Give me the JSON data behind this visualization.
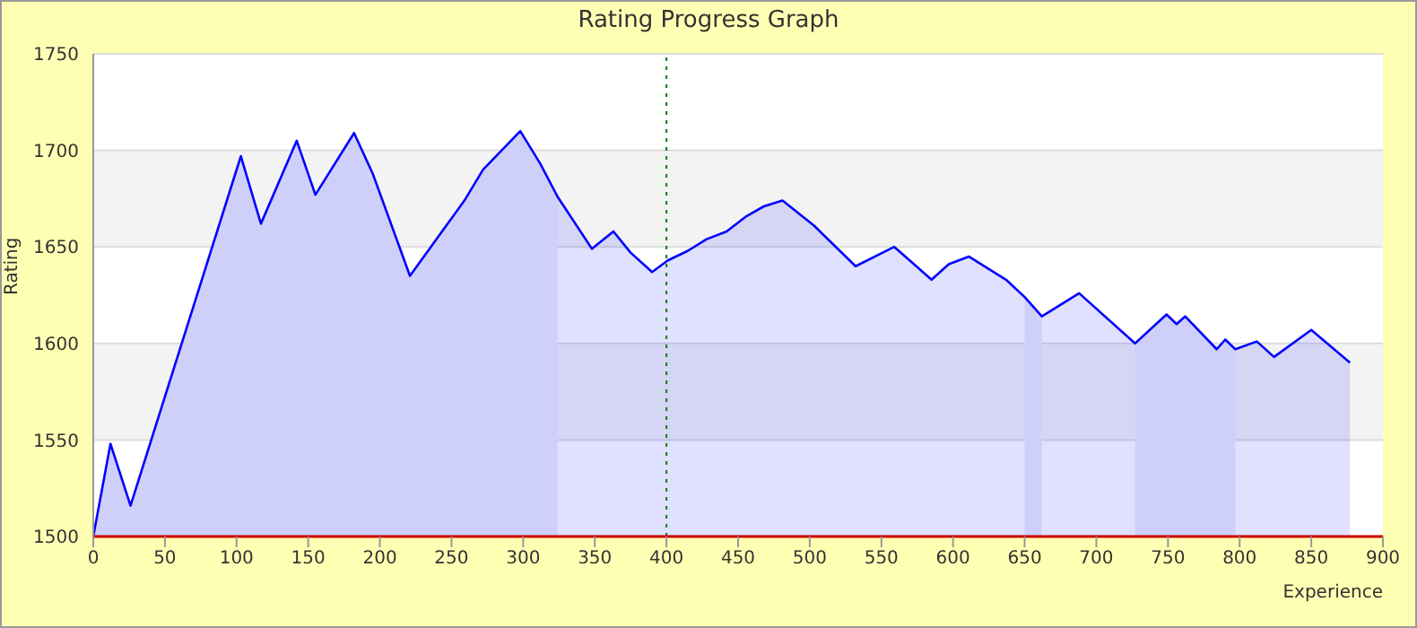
{
  "chart_data": {
    "type": "area",
    "title": "Rating Progress Graph",
    "xlabel": "Experience",
    "ylabel": "Rating",
    "xlim": [
      0,
      900
    ],
    "xticks": [
      0,
      50,
      100,
      150,
      200,
      250,
      300,
      350,
      400,
      450,
      500,
      550,
      600,
      650,
      700,
      750,
      800,
      850,
      900
    ],
    "ylim": [
      1500,
      1750
    ],
    "yticks": [
      1500,
      1550,
      1600,
      1650,
      1700,
      1750
    ],
    "grid": "y",
    "legend": false,
    "line_style": "solid",
    "ref_lines": [
      {
        "axis": "x",
        "value": 400,
        "color": "#008000",
        "line_style": "dotted"
      }
    ],
    "series": [
      {
        "color": "#0000ff",
        "x": [
          0,
          12,
          26,
          103,
          117,
          142,
          155,
          182,
          195,
          221,
          259,
          272,
          298,
          312,
          324,
          348,
          363,
          375,
          390,
          401,
          415,
          428,
          442,
          456,
          468,
          481,
          503,
          532,
          559,
          585,
          597,
          611,
          637,
          650,
          662,
          688,
          727,
          749,
          756,
          762,
          784,
          790,
          797,
          812,
          824,
          850,
          877
        ],
        "values": [
          1500,
          1548,
          1516,
          1697,
          1662,
          1705,
          1677,
          1709,
          1688,
          1635,
          1674,
          1690,
          1710,
          1693,
          1676,
          1649,
          1658,
          1647,
          1637,
          1643,
          1648,
          1654,
          1658,
          1666,
          1671,
          1674,
          1661,
          1640,
          1650,
          1633,
          1641,
          1645,
          1633,
          1624,
          1614,
          1626,
          1600,
          1615,
          1610,
          1614,
          1597,
          1602,
          1597,
          1601,
          1593,
          1607,
          1590
        ]
      },
      {
        "type": "area",
        "color": "#cfd0fa",
        "x": [
          0,
          12,
          26,
          103,
          117,
          142,
          155,
          182,
          195,
          221,
          259,
          272,
          298,
          312,
          324
        ],
        "values": [
          1500,
          1548,
          1516,
          1697,
          1662,
          1705,
          1677,
          1709,
          1688,
          1635,
          1674,
          1690,
          1710,
          1693,
          1676
        ]
      },
      {
        "type": "area",
        "color": "#cfd0fa",
        "x": [
          650,
          662
        ],
        "values": [
          1624,
          1614
        ]
      },
      {
        "type": "area",
        "color": "#cfd0fa",
        "x": [
          727,
          749,
          756,
          762,
          784,
          790,
          797
        ],
        "values": [
          1600,
          1615,
          1610,
          1614,
          1597,
          1602,
          1597
        ]
      }
    ]
  }
}
